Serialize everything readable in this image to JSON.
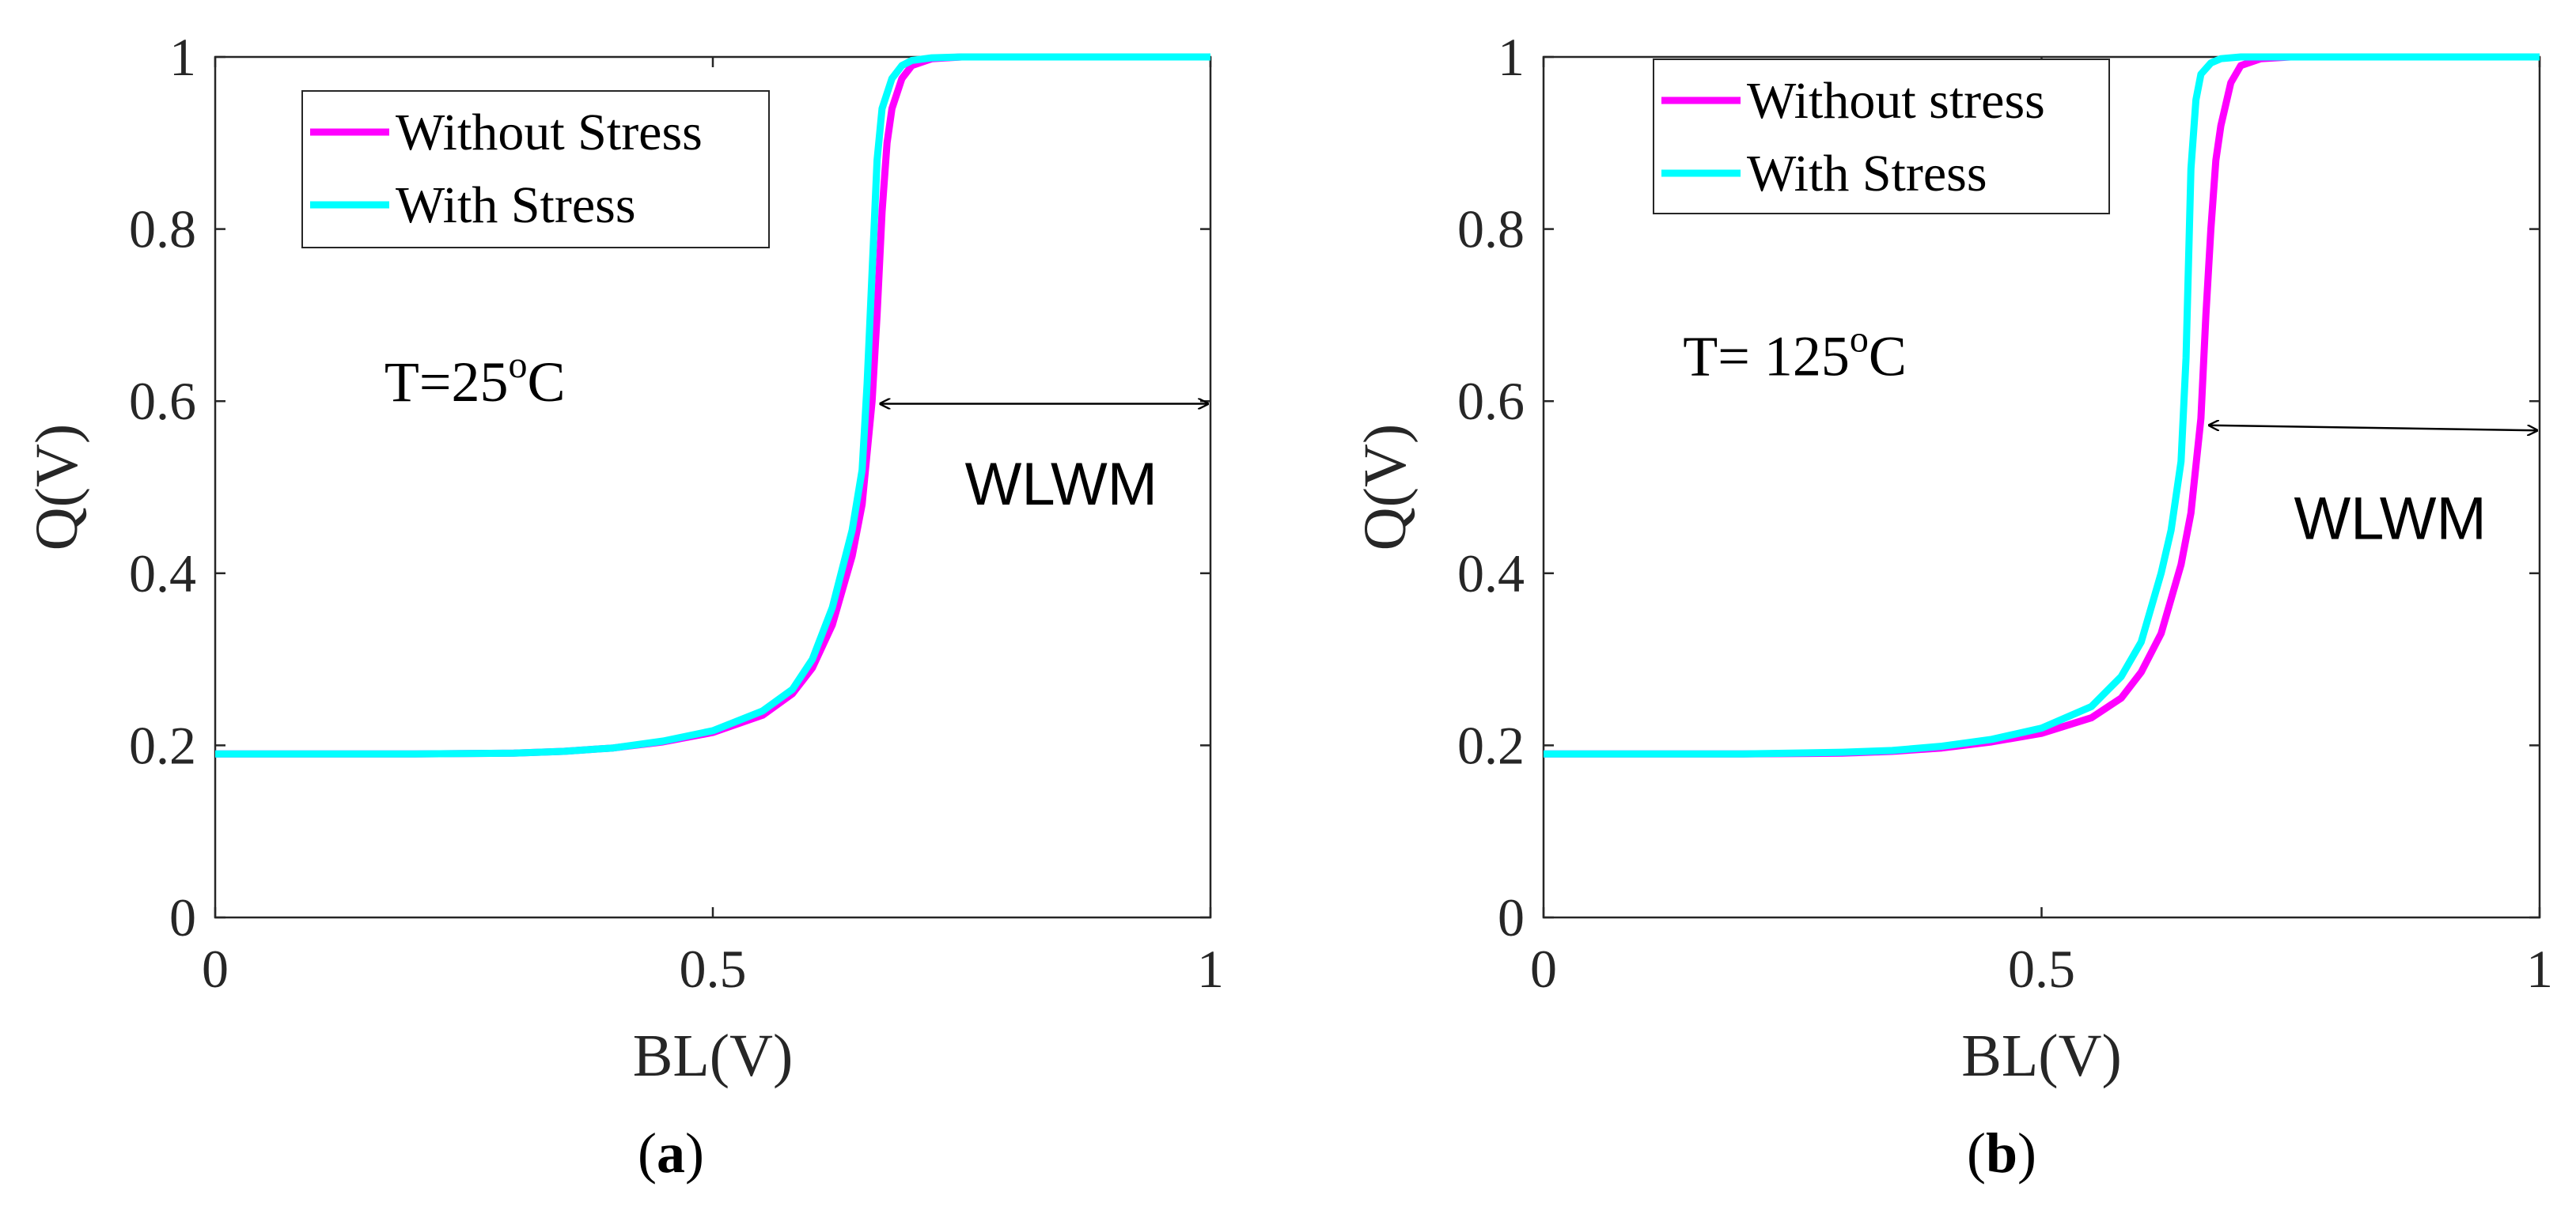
{
  "chart_data": [
    {
      "type": "line",
      "panel_label": "a",
      "xlabel": "BL(V)",
      "ylabel": "Q(V)",
      "xlim": [
        0,
        1
      ],
      "ylim": [
        0,
        1
      ],
      "xticks": [
        "0",
        "0.5",
        "1"
      ],
      "yticks": [
        "0",
        "0.2",
        "0.4",
        "0.6",
        "0.8",
        "1"
      ],
      "legend_position": "top-left",
      "annotation": {
        "prefix": "T=",
        "value": "25",
        "sup": "o",
        "unit": "C",
        "x": 0.17,
        "y": 0.6
      },
      "margin_label": "WLWM",
      "margin_arrow": {
        "x_start": 0.665,
        "x_end": 1.0,
        "y": 0.597
      },
      "series": [
        {
          "name": "Without Stress",
          "color": "#ff00ff",
          "x": [
            0,
            0.1,
            0.2,
            0.3,
            0.35,
            0.4,
            0.45,
            0.5,
            0.55,
            0.58,
            0.6,
            0.62,
            0.64,
            0.65,
            0.66,
            0.665,
            0.67,
            0.675,
            0.68,
            0.69,
            0.7,
            0.72,
            0.75,
            0.8,
            0.9,
            1.0
          ],
          "y": [
            0.19,
            0.19,
            0.19,
            0.191,
            0.193,
            0.197,
            0.204,
            0.215,
            0.235,
            0.26,
            0.29,
            0.34,
            0.42,
            0.48,
            0.6,
            0.7,
            0.82,
            0.9,
            0.94,
            0.975,
            0.99,
            0.998,
            1.0,
            1.0,
            1.0,
            1.0
          ]
        },
        {
          "name": "With Stress",
          "color": "#00ffff",
          "x": [
            0,
            0.1,
            0.2,
            0.3,
            0.35,
            0.4,
            0.45,
            0.5,
            0.55,
            0.58,
            0.6,
            0.62,
            0.64,
            0.65,
            0.655,
            0.66,
            0.665,
            0.67,
            0.68,
            0.69,
            0.7,
            0.72,
            0.75,
            0.8,
            0.9,
            1.0
          ],
          "y": [
            0.19,
            0.19,
            0.19,
            0.191,
            0.193,
            0.197,
            0.205,
            0.217,
            0.24,
            0.265,
            0.3,
            0.36,
            0.45,
            0.52,
            0.62,
            0.75,
            0.88,
            0.94,
            0.975,
            0.99,
            0.996,
            0.999,
            1.0,
            1.0,
            1.0,
            1.0
          ]
        }
      ]
    },
    {
      "type": "line",
      "panel_label": "b",
      "xlabel": "BL(V)",
      "ylabel": "Q(V)",
      "xlim": [
        0,
        1
      ],
      "ylim": [
        0,
        1
      ],
      "xticks": [
        "0",
        "0.5",
        "1"
      ],
      "yticks": [
        "0",
        "0.2",
        "0.4",
        "0.6",
        "0.8",
        "1"
      ],
      "legend_position": "top-left",
      "annotation": {
        "prefix": "T= ",
        "value": "125",
        "sup": "o",
        "unit": "C",
        "x": 0.14,
        "y": 0.63
      },
      "margin_label": "WLWM",
      "margin_arrow": {
        "x_start": 0.665,
        "x_end": 1.0,
        "y_start": 0.572,
        "y_end": 0.566
      },
      "series": [
        {
          "name": "Without stress",
          "color": "#ff00ff",
          "x": [
            0,
            0.1,
            0.2,
            0.3,
            0.35,
            0.4,
            0.45,
            0.5,
            0.55,
            0.58,
            0.6,
            0.62,
            0.64,
            0.65,
            0.66,
            0.665,
            0.67,
            0.675,
            0.68,
            0.69,
            0.7,
            0.72,
            0.75,
            0.8,
            0.9,
            1.0
          ],
          "y": [
            0.19,
            0.19,
            0.19,
            0.191,
            0.193,
            0.197,
            0.204,
            0.214,
            0.232,
            0.255,
            0.285,
            0.33,
            0.41,
            0.47,
            0.58,
            0.7,
            0.8,
            0.88,
            0.92,
            0.97,
            0.99,
            0.998,
            1.0,
            1.0,
            1.0,
            1.0
          ]
        },
        {
          "name": "With Stress",
          "color": "#00ffff",
          "x": [
            0,
            0.1,
            0.2,
            0.3,
            0.35,
            0.4,
            0.45,
            0.5,
            0.55,
            0.58,
            0.6,
            0.62,
            0.63,
            0.64,
            0.645,
            0.65,
            0.655,
            0.66,
            0.67,
            0.68,
            0.7,
            0.72,
            0.75,
            0.8,
            0.9,
            1.0
          ],
          "y": [
            0.19,
            0.19,
            0.19,
            0.192,
            0.194,
            0.199,
            0.207,
            0.22,
            0.245,
            0.28,
            0.32,
            0.4,
            0.45,
            0.53,
            0.65,
            0.87,
            0.95,
            0.98,
            0.993,
            0.998,
            1.0,
            1.0,
            1.0,
            1.0,
            1.0,
            1.0
          ]
        }
      ]
    }
  ]
}
